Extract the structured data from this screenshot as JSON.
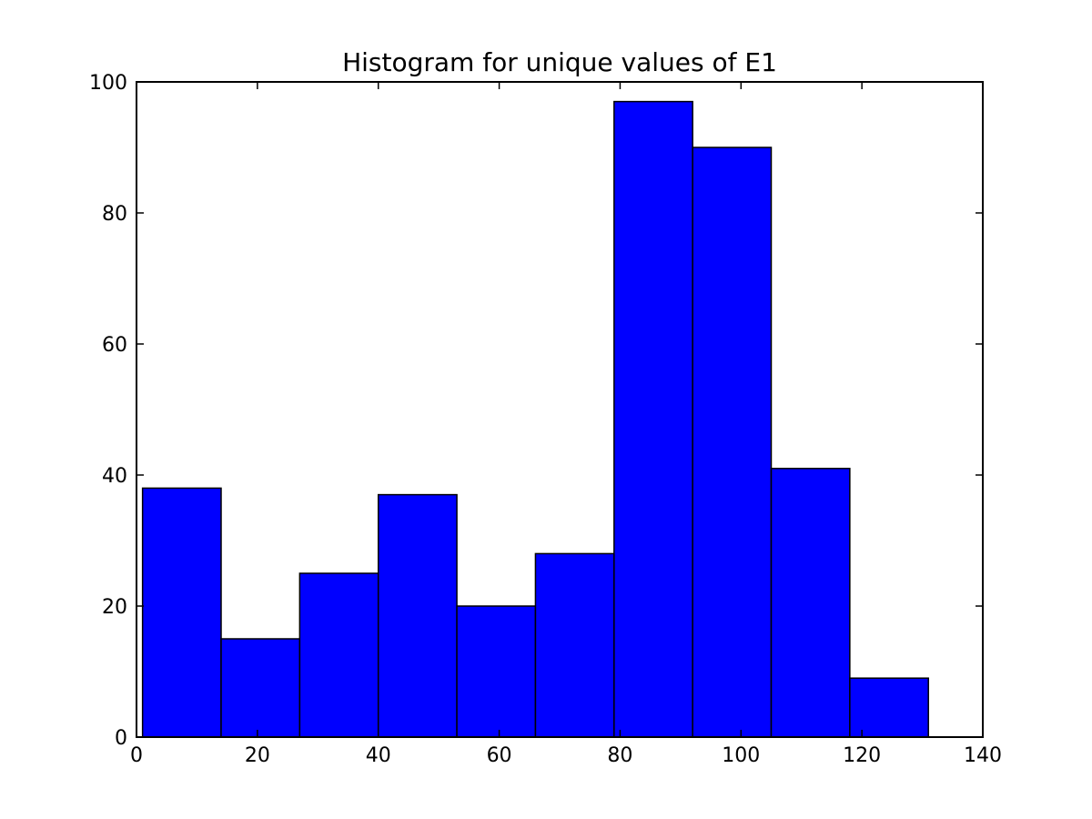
{
  "chart_data": {
    "type": "bar",
    "title": "Histogram for unique values of E1",
    "xlabel": "",
    "ylabel": "",
    "xlim": [
      0,
      140
    ],
    "ylim": [
      0,
      100
    ],
    "xticks": [
      0,
      20,
      40,
      60,
      80,
      100,
      120,
      140
    ],
    "yticks": [
      0,
      20,
      40,
      60,
      80,
      100
    ],
    "grid": false,
    "bar_color": "#0000ff",
    "edge_color": "#000000",
    "bins": [
      {
        "x0": 1,
        "x1": 14,
        "value": 38
      },
      {
        "x0": 14,
        "x1": 27,
        "value": 15
      },
      {
        "x0": 27,
        "x1": 40,
        "value": 25
      },
      {
        "x0": 40,
        "x1": 53,
        "value": 37
      },
      {
        "x0": 53,
        "x1": 66,
        "value": 20
      },
      {
        "x0": 66,
        "x1": 79,
        "value": 28
      },
      {
        "x0": 79,
        "x1": 92,
        "value": 97
      },
      {
        "x0": 92,
        "x1": 105,
        "value": 90
      },
      {
        "x0": 105,
        "x1": 118,
        "value": 41
      },
      {
        "x0": 118,
        "x1": 131,
        "value": 9
      }
    ]
  }
}
